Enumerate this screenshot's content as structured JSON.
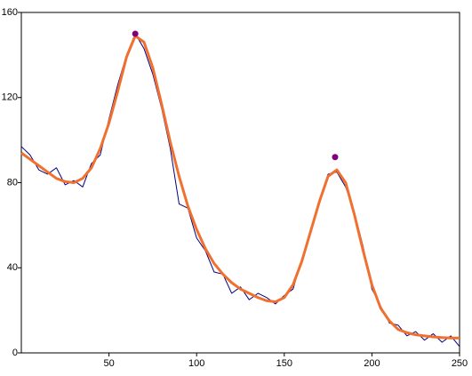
{
  "chart_data": {
    "type": "line",
    "x": [
      0,
      5,
      10,
      15,
      20,
      25,
      30,
      35,
      40,
      45,
      50,
      55,
      60,
      65,
      70,
      75,
      80,
      85,
      90,
      95,
      100,
      105,
      110,
      115,
      120,
      125,
      130,
      135,
      140,
      145,
      150,
      155,
      160,
      165,
      170,
      175,
      180,
      185,
      190,
      195,
      200,
      205,
      210,
      215,
      220,
      225,
      230,
      235,
      240,
      245,
      250
    ],
    "series": [
      {
        "color": "#000080",
        "width": 1,
        "values": [
          97,
          93,
          86,
          84,
          87,
          79,
          81,
          78,
          89,
          93,
          110,
          126,
          140,
          150,
          143,
          131,
          115,
          96,
          70,
          68,
          54,
          48,
          38,
          37,
          28,
          31,
          25,
          28,
          26,
          23,
          27,
          30,
          44,
          58,
          72,
          84,
          85,
          78,
          66,
          50,
          30,
          22,
          14,
          13,
          8,
          10,
          6,
          9,
          5,
          8,
          3
        ]
      },
      {
        "color": "#f07030",
        "width": 3,
        "values": [
          94,
          91,
          88,
          85,
          82,
          80.5,
          80,
          82,
          87,
          96,
          108,
          123,
          139,
          149,
          146,
          134,
          117,
          99,
          83,
          69,
          58,
          49,
          42,
          37,
          33,
          30,
          28,
          26,
          24.5,
          24,
          26,
          32,
          43,
          57,
          71,
          83,
          86,
          80,
          65,
          48,
          32,
          21,
          15,
          11,
          9.5,
          8.5,
          8,
          7.5,
          7.2,
          7,
          7
        ]
      },
      {
        "type": "scatter",
        "color": "#800080",
        "x": [
          65,
          179
        ],
        "values": [
          150,
          92
        ]
      }
    ],
    "xlim": [
      0,
      250
    ],
    "xticks": [
      50,
      100,
      150,
      200,
      250
    ],
    "ylim": [
      0,
      160
    ],
    "yticks": [
      0,
      40,
      80,
      120,
      160
    ]
  }
}
